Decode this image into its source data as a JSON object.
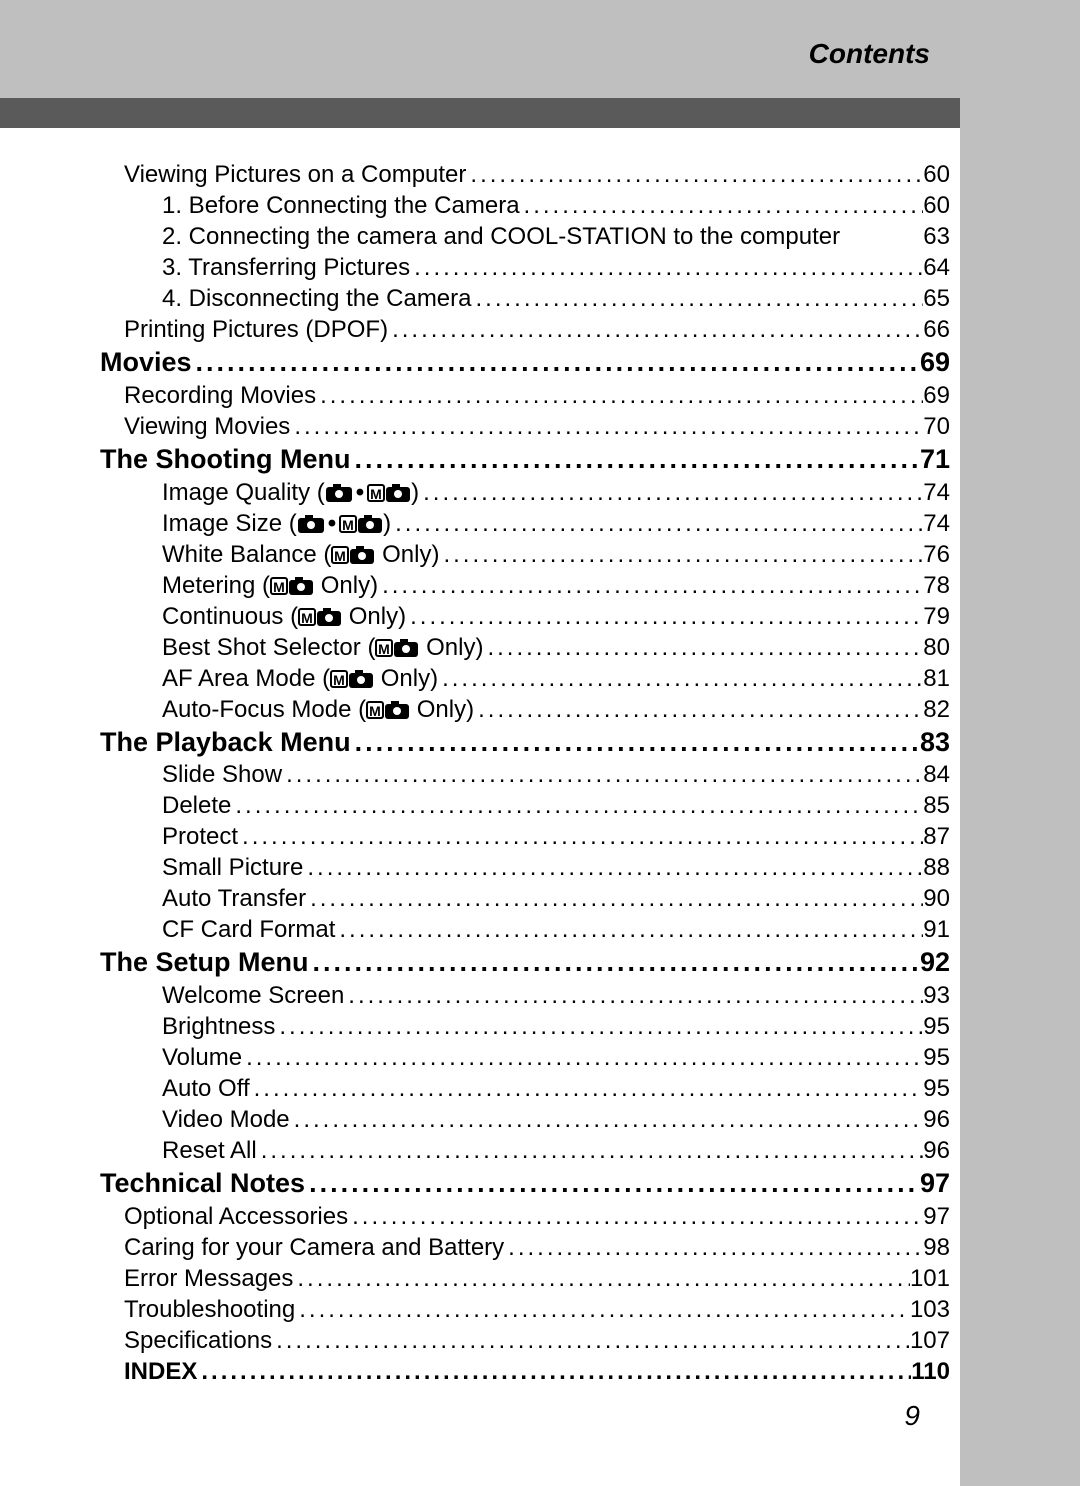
{
  "header_title": "Contents",
  "page_number": "9",
  "colors": {
    "header_band": "#bfbfbf",
    "header_band_dark": "#5a5a5a",
    "sidebar": "#bfbfbf",
    "text": "#000000",
    "background": "#ffffff"
  },
  "typography": {
    "body_font": "Arial",
    "body_size_pt": 18,
    "header_title_size_pt": 21,
    "heading_size_pt": 20,
    "page_num_size_pt": 21
  },
  "toc": [
    {
      "label": "Viewing Pictures on a Computer",
      "page": "60",
      "level": 1,
      "icons": []
    },
    {
      "label": "1. Before Connecting the Camera",
      "page": "60",
      "level": 2,
      "icons": []
    },
    {
      "label": "2. Connecting the camera and COOL-STATION to the computer",
      "page": "63",
      "level": 2,
      "nodots": true,
      "icons": []
    },
    {
      "label": "3. Transferring Pictures",
      "page": "64",
      "level": 2,
      "icons": []
    },
    {
      "label": "4. Disconnecting the Camera",
      "page": "65",
      "level": 2,
      "icons": []
    },
    {
      "label": "Printing Pictures (DPOF)",
      "page": "66",
      "level": 1,
      "icons": []
    },
    {
      "label": "Movies",
      "page": "69",
      "level": 0,
      "icons": []
    },
    {
      "label": "Recording Movies",
      "page": "69",
      "level": 1,
      "icons": []
    },
    {
      "label": "Viewing Movies",
      "page": "70",
      "level": 1,
      "icons": []
    },
    {
      "label": "The Shooting Menu",
      "page": "71",
      "level": 0,
      "icons": []
    },
    {
      "label": "Image Quality ",
      "page": "74",
      "level": 2,
      "suffix": "",
      "icons": [
        "camera",
        "dot",
        "M-camera"
      ],
      "close_paren": true
    },
    {
      "label": "Image Size ",
      "page": "74",
      "level": 2,
      "icons": [
        "camera",
        "dot",
        "M-camera"
      ],
      "close_paren": true
    },
    {
      "label": "White Balance ",
      "page": "76",
      "level": 2,
      "icons": [
        "M-camera"
      ],
      "only_text": " Only",
      "close_paren": true
    },
    {
      "label": "Metering ",
      "page": "78",
      "level": 2,
      "icons": [
        "M-camera"
      ],
      "only_text": " Only",
      "close_paren": true
    },
    {
      "label": "Continuous ",
      "page": "79",
      "level": 2,
      "icons": [
        "M-camera"
      ],
      "only_text": " Only",
      "close_paren": true
    },
    {
      "label": "Best Shot Selector ",
      "page": "80",
      "level": 2,
      "icons": [
        "M-camera"
      ],
      "only_text": " Only",
      "close_paren": true
    },
    {
      "label": "AF Area Mode ",
      "page": "81",
      "level": 2,
      "icons": [
        "M-camera"
      ],
      "only_text": " Only",
      "close_paren": true
    },
    {
      "label": "Auto-Focus Mode ",
      "page": "82",
      "level": 2,
      "icons": [
        "M-camera"
      ],
      "only_text": " Only",
      "close_paren": true
    },
    {
      "label": "The Playback Menu",
      "page": "83",
      "level": 0,
      "icons": []
    },
    {
      "label": "Slide Show",
      "page": "84",
      "level": 2,
      "icons": []
    },
    {
      "label": "Delete",
      "page": "85",
      "level": 2,
      "icons": []
    },
    {
      "label": "Protect",
      "page": "87",
      "level": 2,
      "icons": []
    },
    {
      "label": "Small Picture",
      "page": "88",
      "level": 2,
      "icons": []
    },
    {
      "label": "Auto Transfer",
      "page": "90",
      "level": 2,
      "icons": []
    },
    {
      "label": "CF Card Format",
      "page": "91",
      "level": 2,
      "icons": []
    },
    {
      "label": "The Setup Menu",
      "page": "92",
      "level": 0,
      "icons": []
    },
    {
      "label": "Welcome Screen",
      "page": "93",
      "level": 2,
      "icons": []
    },
    {
      "label": "Brightness",
      "page": "95",
      "level": 2,
      "icons": []
    },
    {
      "label": "Volume",
      "page": "95",
      "level": 2,
      "icons": []
    },
    {
      "label": "Auto Off",
      "page": "95",
      "level": 2,
      "icons": []
    },
    {
      "label": "Video Mode",
      "page": "96",
      "level": 2,
      "icons": []
    },
    {
      "label": "Reset All",
      "page": "96",
      "level": 2,
      "icons": []
    },
    {
      "label": "Technical Notes",
      "page": "97",
      "level": 0,
      "icons": []
    },
    {
      "label": "Optional Accessories",
      "page": "97",
      "level": 1,
      "icons": []
    },
    {
      "label": "Caring for your Camera and Battery",
      "page": "98",
      "level": 1,
      "icons": []
    },
    {
      "label": "Error Messages",
      "page": "101",
      "level": 1,
      "icons": []
    },
    {
      "label": "Troubleshooting",
      "page": "103",
      "level": 1,
      "icons": []
    },
    {
      "label": "Specifications",
      "page": "107",
      "level": 1,
      "icons": []
    },
    {
      "label": "INDEX",
      "page": "110",
      "level": 1,
      "bold": true,
      "icons": []
    }
  ]
}
